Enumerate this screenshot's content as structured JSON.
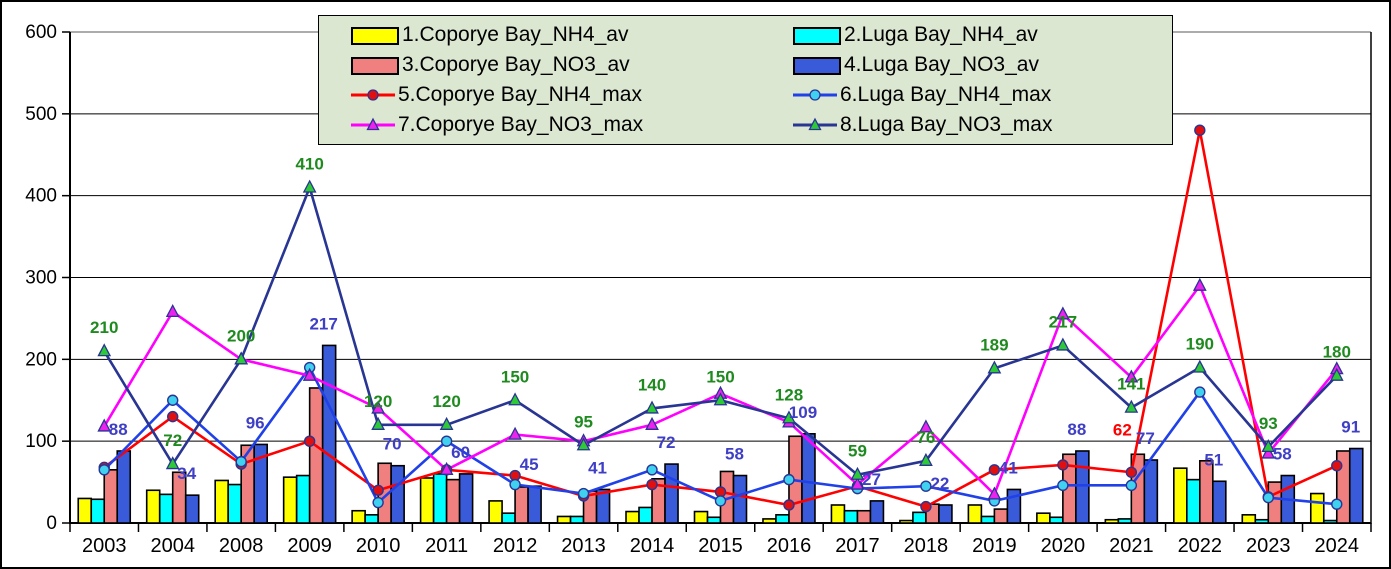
{
  "chart_data": {
    "type": "bar+line combo",
    "title": "",
    "categories": [
      "2003",
      "2004",
      "2008",
      "2009",
      "2010",
      "2011",
      "2012",
      "2013",
      "2014",
      "2015",
      "2016",
      "2017",
      "2018",
      "2019",
      "2020",
      "2021",
      "2022",
      "2023",
      "2024"
    ],
    "y_axis": {
      "min": 0,
      "max": 600,
      "step": 100,
      "tick_labels": [
        "0",
        "100",
        "200",
        "300",
        "400",
        "500",
        "600"
      ]
    },
    "grid": "horizontal",
    "legend_position": "top-center",
    "series": [
      {
        "name": "1.Coporye Bay_NH4_av",
        "type": "bar",
        "color": "#ffff00",
        "border": "#000000",
        "values": [
          30,
          40,
          52,
          56,
          15,
          55,
          27,
          8,
          14,
          14,
          5,
          22,
          3,
          22,
          12,
          4,
          67,
          10,
          36
        ]
      },
      {
        "name": "2.Luga Bay_NH4_av",
        "type": "bar",
        "color": "#00ffff",
        "border": "#000000",
        "values": [
          29,
          35,
          47,
          58,
          10,
          60,
          12,
          8,
          19,
          7,
          10,
          15,
          13,
          8,
          7,
          5,
          53,
          4,
          3
        ]
      },
      {
        "name": "3.Coporye Bay_NO3_av",
        "type": "bar",
        "color": "#f08080",
        "border": "#000000",
        "values": [
          65,
          62,
          95,
          165,
          73,
          53,
          44,
          39,
          54,
          63,
          106,
          15,
          23,
          17,
          84,
          84,
          76,
          50,
          88
        ]
      },
      {
        "name": "4.Luga Bay_NO3_av",
        "type": "bar",
        "color": "#3a5bd9",
        "border": "#000000",
        "values": [
          88,
          34,
          96,
          217,
          70,
          60,
          45,
          41,
          72,
          58,
          109,
          27,
          22,
          41,
          88,
          77,
          51,
          58,
          91
        ],
        "labels": "all",
        "label_color": "#3f3fc6"
      },
      {
        "name": "5.Coporye Bay_NH4_max",
        "type": "line",
        "color": "#ff0000",
        "marker": "circle",
        "marker_fill": "#e01010",
        "marker_stroke": "#283593",
        "values": [
          68,
          130,
          72,
          100,
          40,
          65,
          58,
          33,
          47,
          38,
          22,
          45,
          20,
          65,
          71,
          62,
          480,
          32,
          70
        ],
        "label_points": [
          {
            "index": 15,
            "dx": -9,
            "dy": -37
          }
        ],
        "label_color": "#ff0000"
      },
      {
        "name": "6.Luga Bay_NH4_max",
        "type": "line",
        "color": "#2040e8",
        "marker": "circle",
        "marker_fill": "#40d0f0",
        "marker_stroke": "#283593",
        "values": [
          65,
          150,
          75,
          190,
          25,
          100,
          47,
          36,
          65,
          27,
          53,
          42,
          45,
          27,
          46,
          46,
          160,
          31,
          23
        ]
      },
      {
        "name": "7.Coporye Bay_NO3_max",
        "type": "line",
        "color": "#ff00ff",
        "marker": "triangle",
        "marker_fill": "#ee22ee",
        "marker_stroke": "#283593",
        "values": [
          118,
          258,
          200,
          180,
          140,
          65,
          108,
          100,
          120,
          158,
          123,
          47,
          117,
          35,
          255,
          178,
          290,
          85,
          188
        ]
      },
      {
        "name": "8.Luga Bay_NO3_max",
        "type": "line",
        "color": "#283593",
        "marker": "triangle",
        "marker_fill": "#2dc937",
        "marker_stroke": "#283593",
        "values": [
          210,
          72,
          200,
          410,
          120,
          120,
          150,
          95,
          140,
          150,
          128,
          59,
          76,
          189,
          217,
          141,
          190,
          93,
          180
        ],
        "labels": "all",
        "label_color": "#1f8a1f"
      }
    ],
    "colors": {
      "plot_background": "#ffffff",
      "legend_background": "#dce7d2",
      "gridline": "#000000",
      "top_border": "#909090",
      "blue_value_labels": "#3f3fc6",
      "green_value_labels": "#1f8a1f",
      "red_value_label": "#ff0000"
    }
  },
  "legend": {
    "note": "labels bound from chart_data.series names"
  }
}
